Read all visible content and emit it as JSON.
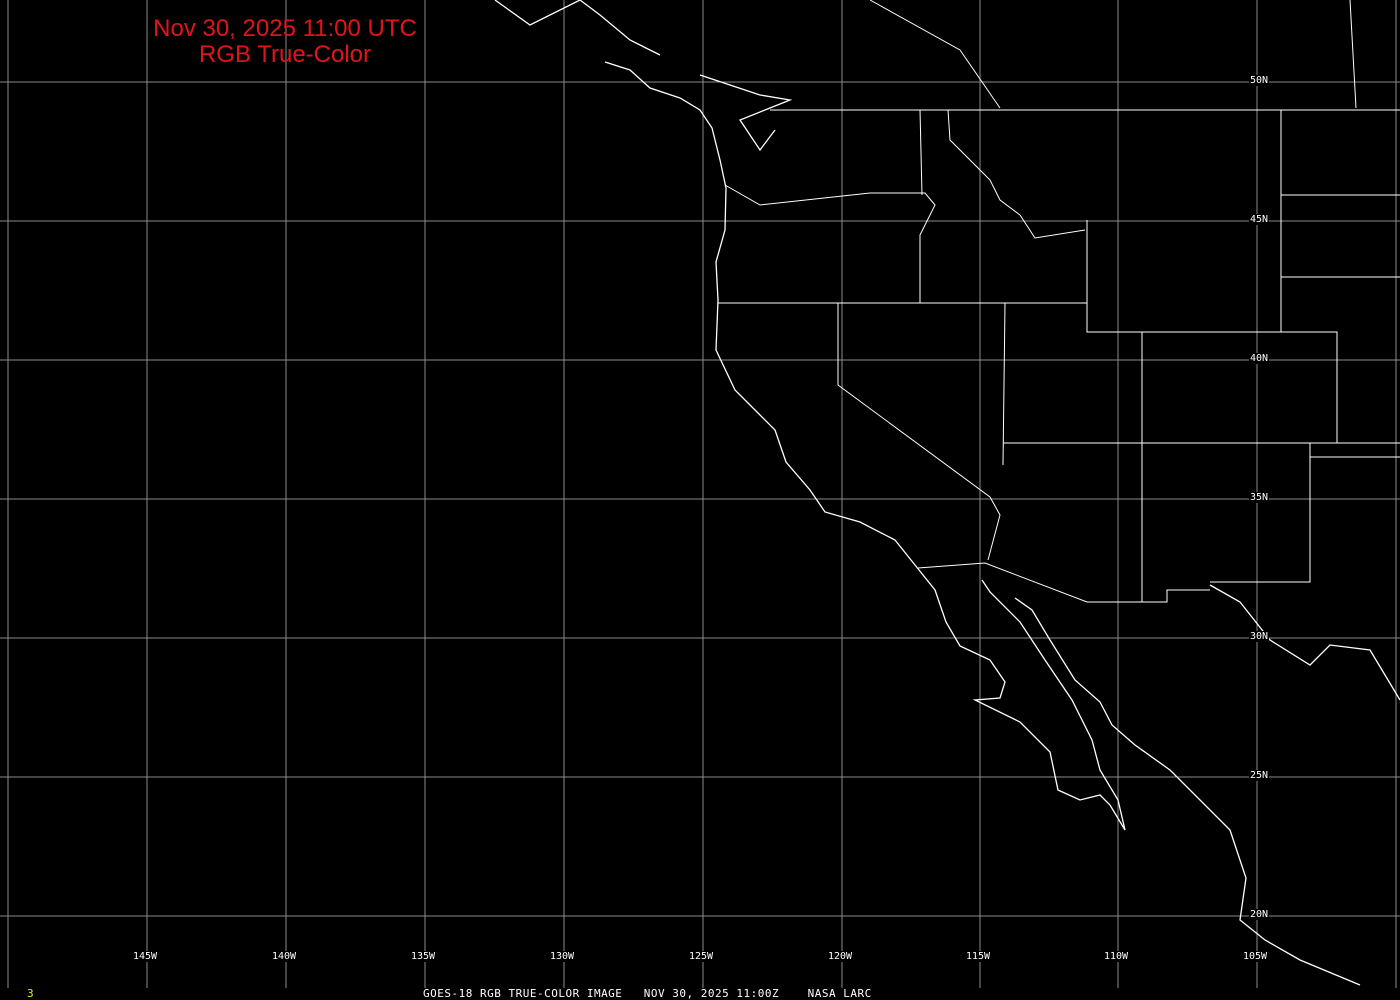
{
  "title": {
    "line1": "Nov 30, 2025 11:00 UTC",
    "line2": "RGB True-Color",
    "color": "#e0141a"
  },
  "grid": {
    "latitudes": [
      "50N",
      "45N",
      "40N",
      "35N",
      "30N",
      "25N",
      "20N"
    ],
    "longitudes": [
      "145W",
      "140W",
      "135W",
      "130W",
      "125W",
      "120W",
      "115W",
      "110W",
      "105W"
    ]
  },
  "footer": {
    "frame_number": "3",
    "caption": "GOES-18 RGB TRUE-COLOR IMAGE   NOV 30, 2025 11:00Z    NASA LARC"
  },
  "colors": {
    "grid": "#8a8a8a",
    "coastline": "#ffffff",
    "background": "#000000"
  }
}
